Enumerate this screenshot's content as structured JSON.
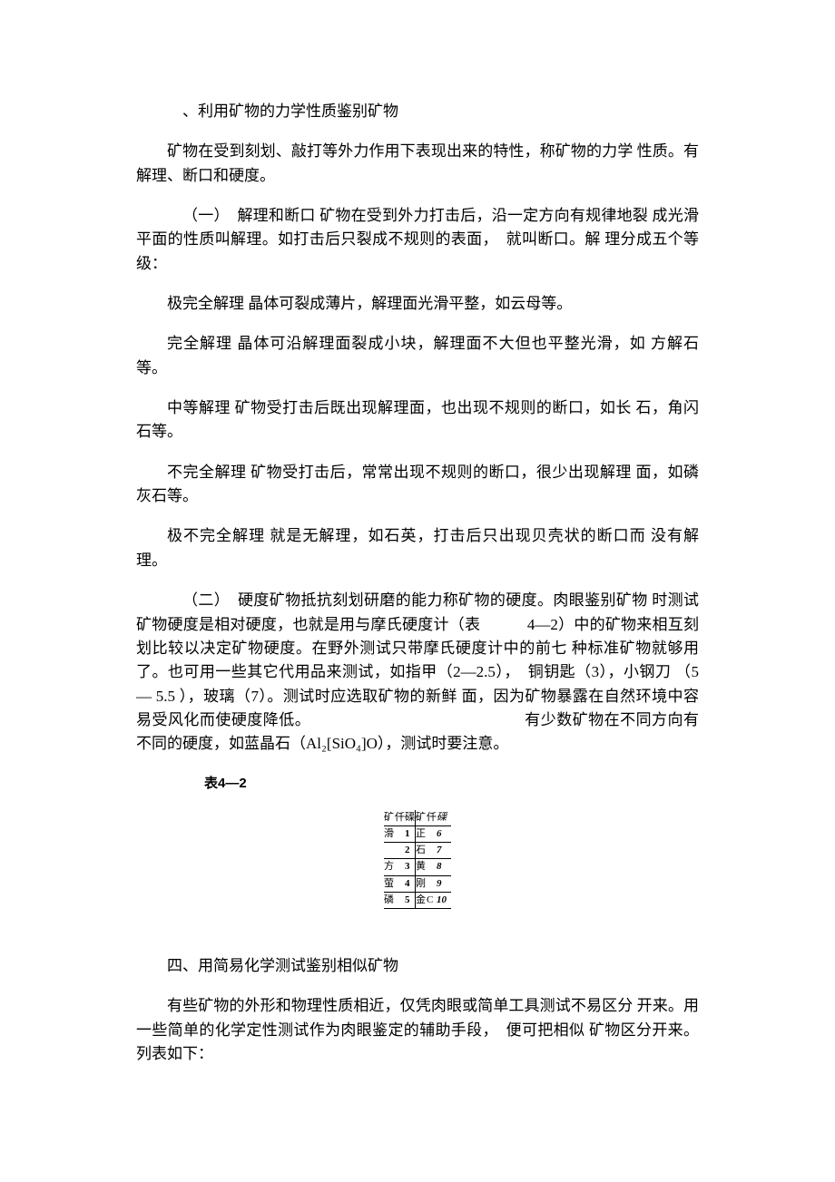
{
  "doc": {
    "heading_section3": "、利用矿物的力学性质鉴别矿物",
    "p1": "矿物在受到刻划、敲打等外力作用下表现出来的特性，称矿物的力学 性质。有解理、断口和硬度。",
    "p2": "（一）　解理和断口 矿物在受到外力打击后，沿一定方向有规律地裂 成光滑平面的性质叫解理。如打击后只裂成不规则的表面，　就叫断口。解 理分成五个等级：",
    "p3": "极完全解理 晶体可裂成薄片，解理面光滑平整，如云母等。",
    "p4": "完全解理 晶体可沿解理面裂成小块，解理面不大但也平整光滑，如 方解石等。",
    "p5": "中等解理 矿物受打击后既出现解理面，也出现不规则的断口，如长 石，角闪石等。",
    "p6": "不完全解理 矿物受打击后，常常出现不规则的断口，很少出现解理 面，如磷灰石等。",
    "p7": "极不完全解理 就是无解理，如石英，打击后只出现贝壳状的断口而 没有解理。",
    "p8": "（二）　硬度矿物抵抗刻划研磨的能力称矿物的硬度。肉眼鉴别矿物 时测试矿物硬度是相对硬度，也就是用与摩氏硬度计（表　　　4—2）中的矿物来相互刻划比较以决定矿物硬度。在野外测试只带摩氏硬度计中的前七 种标准矿物就够用了。也可用一些其它代用品来测试，如指甲（2—2.5），　铜钥匙（3），小钢刀 （5— 5.5 ），玻璃（7）。测试时应选取矿物的新鲜 面，因为矿物暴露在自然环境中容易受风化而使硬度降低。　　　　　　　　　　　　　　有少数矿物在不同方向有不同的硬度，如蓝晶石（Al₂[SiO₄]O），测试时要注意。",
    "table_label": "表4—2",
    "heading_section4": "四、用简易化学测试鉴别相似矿物",
    "p9": "有些矿物的外形和物理性质相近，仅凭肉眼或简单工具测试不易区分 开来。用一些简单的化学定性测试作为肉眼鉴定的辅助手段，　便可把相似 矿物区分开来。列表如下："
  },
  "mohs": {
    "header": {
      "c1": "矿",
      "c2": "仟",
      "c3": "磲",
      "c4": "矿",
      "c5": "仟",
      "c6": "磲"
    },
    "rows": [
      {
        "m1": "滑",
        "hA": "",
        "h1": "1",
        "m2": "正",
        "hB": "",
        "h2": "6"
      },
      {
        "m1": "",
        "hA": "",
        "h1": "2",
        "m2": "石",
        "hB": "",
        "h2": "7"
      },
      {
        "m1": "方",
        "hA": "",
        "h1": "3",
        "m2": "黄",
        "hB": "",
        "h2": "8"
      },
      {
        "m1": "萤",
        "hA": "",
        "h1": "4",
        "m2": "刚",
        "hB": "",
        "h2": "9"
      },
      {
        "m1": "磷",
        "hA": "",
        "h1": "5",
        "m2": "金",
        "hB": "C",
        "h2": "10"
      }
    ]
  }
}
